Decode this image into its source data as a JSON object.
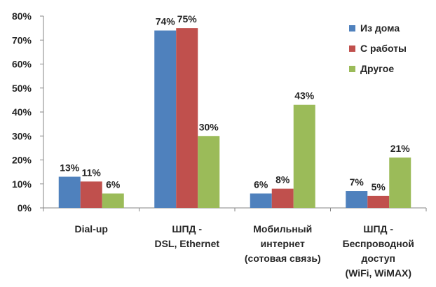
{
  "chart_data": {
    "type": "bar",
    "categories": [
      [
        "Dial-up"
      ],
      [
        "ШПД -",
        "DSL, Ethernet"
      ],
      [
        "Мобильный",
        "интернет",
        "(сотовая связь)"
      ],
      [
        "ШПД -",
        "Беспроводной",
        "доступ",
        "(WiFi, WiMAX)"
      ]
    ],
    "series": [
      {
        "name": "Из дома",
        "color": "#4F81BD",
        "values": [
          13,
          74,
          6,
          7
        ],
        "labels": [
          "13%",
          "74%",
          "6%",
          "7%"
        ]
      },
      {
        "name": "С работы",
        "color": "#C0504D",
        "values": [
          11,
          75,
          8,
          5
        ],
        "labels": [
          "11%",
          "75%",
          "8%",
          "5%"
        ]
      },
      {
        "name": "Другое",
        "color": "#9BBB59",
        "values": [
          6,
          30,
          43,
          21
        ],
        "labels": [
          "6%",
          "30%",
          "43%",
          "21%"
        ]
      }
    ],
    "y_ticks": [
      "0%",
      "10%",
      "20%",
      "30%",
      "40%",
      "50%",
      "60%",
      "70%",
      "80%"
    ],
    "ylim": [
      0,
      80
    ],
    "unit": "%",
    "grid": false,
    "legend_position": "top-right"
  }
}
